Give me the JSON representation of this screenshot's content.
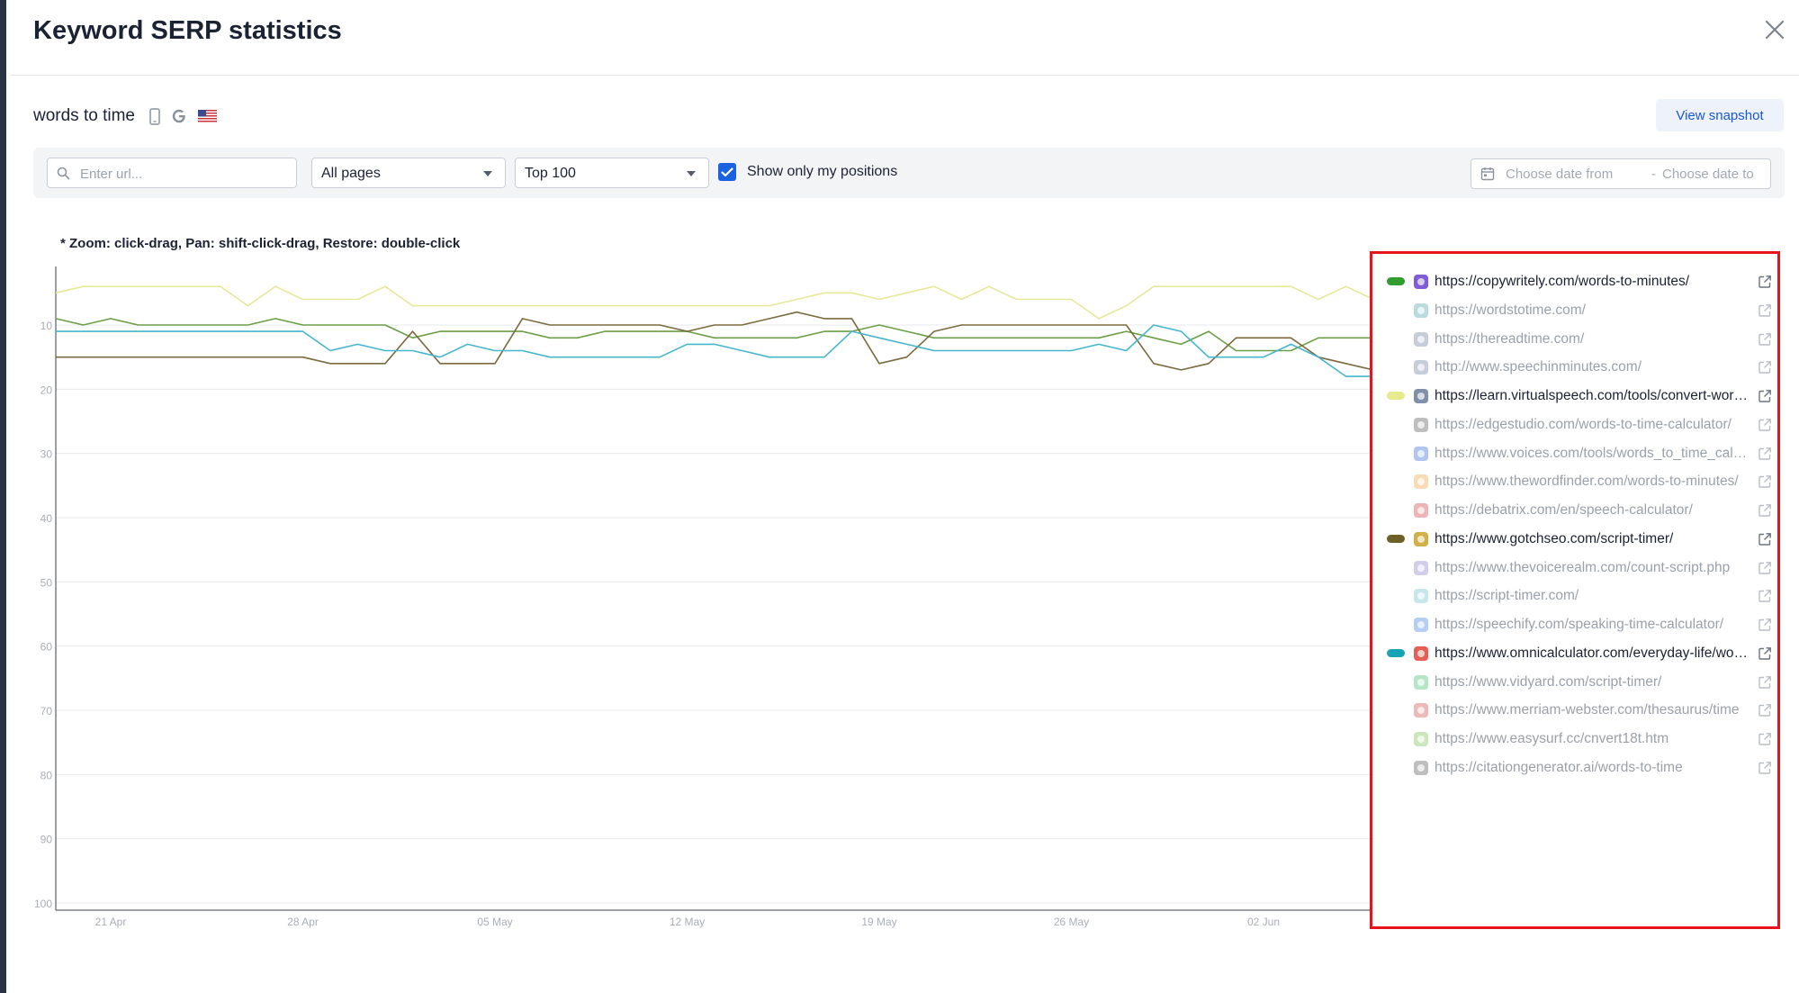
{
  "modal": {
    "title": "Keyword SERP statistics"
  },
  "keyword": {
    "text": "words to time",
    "device_icon": "mobile-phone-icon",
    "engine_icon": "google-icon",
    "region_icon": "us-flag-icon"
  },
  "actions": {
    "view_snapshot": "View snapshot"
  },
  "filters": {
    "url_placeholder": "Enter url...",
    "pages_select": "All pages",
    "top_select": "Top 100",
    "show_only_my_positions": "Show only my positions",
    "show_only_my_positions_checked": true,
    "date_from_placeholder": "Choose date from",
    "date_separator": "-",
    "date_to_placeholder": "Choose date to"
  },
  "chart_hint": "* Zoom: click-drag, Pan: shift-click-drag, Restore: double-click",
  "chart_data": {
    "type": "line",
    "y_reversed": true,
    "ylim": [
      1,
      100
    ],
    "y_ticks": [
      "10",
      "20",
      "30",
      "40",
      "50",
      "60",
      "70",
      "80",
      "90",
      "100"
    ],
    "x_ticks": [
      "21 Apr",
      "28 Apr",
      "05 May",
      "12 May",
      "19 May",
      "26 May",
      "02 Jun"
    ],
    "x": [
      "2024-04-19",
      "2024-04-20",
      "2024-04-21",
      "2024-04-22",
      "2024-04-23",
      "2024-04-24",
      "2024-04-25",
      "2024-04-26",
      "2024-04-27",
      "2024-04-28",
      "2024-04-29",
      "2024-04-30",
      "2024-05-01",
      "2024-05-02",
      "2024-05-03",
      "2024-05-04",
      "2024-05-05",
      "2024-05-06",
      "2024-05-07",
      "2024-05-08",
      "2024-05-09",
      "2024-05-10",
      "2024-05-11",
      "2024-05-12",
      "2024-05-13",
      "2024-05-14",
      "2024-05-15",
      "2024-05-16",
      "2024-05-17",
      "2024-05-18",
      "2024-05-19",
      "2024-05-20",
      "2024-05-21",
      "2024-05-22",
      "2024-05-23",
      "2024-05-24",
      "2024-05-25",
      "2024-05-26",
      "2024-05-27",
      "2024-05-28",
      "2024-05-29",
      "2024-05-30",
      "2024-05-31",
      "2024-06-01",
      "2024-06-02",
      "2024-06-03",
      "2024-06-04",
      "2024-06-05",
      "2024-06-06"
    ],
    "grid": true,
    "legend_position": "right",
    "series": [
      {
        "name": "https://copywritely.com/words-to-minutes/",
        "color": "#6a9f45",
        "values": [
          9,
          10,
          9,
          10,
          10,
          10,
          10,
          10,
          9,
          10,
          10,
          10,
          10,
          12,
          11,
          11,
          11,
          11,
          12,
          12,
          11,
          11,
          11,
          11,
          12,
          12,
          12,
          12,
          11,
          11,
          10,
          11,
          12,
          12,
          12,
          12,
          12,
          12,
          12,
          11,
          12,
          13,
          11,
          14,
          14,
          14,
          12,
          12,
          12
        ]
      },
      {
        "name": "https://learn.virtualspeech.com/tools/convert-words-to-time/",
        "color": "#e6e89a",
        "values": [
          5,
          4,
          4,
          4,
          4,
          4,
          4,
          7,
          4,
          6,
          6,
          6,
          4,
          7,
          7,
          7,
          7,
          7,
          7,
          7,
          7,
          7,
          7,
          7,
          7,
          7,
          7,
          6,
          5,
          5,
          6,
          5,
          4,
          6,
          4,
          6,
          6,
          6,
          9,
          7,
          4,
          4,
          4,
          4,
          4,
          4,
          6,
          4,
          6
        ]
      },
      {
        "name": "https://www.gotchseo.com/script-timer/",
        "color": "#7a6a3e",
        "values": [
          15,
          15,
          15,
          15,
          15,
          15,
          15,
          15,
          15,
          15,
          16,
          16,
          16,
          11,
          16,
          16,
          16,
          9,
          10,
          10,
          10,
          10,
          10,
          11,
          10,
          10,
          9,
          8,
          9,
          9,
          16,
          15,
          11,
          10,
          10,
          10,
          10,
          10,
          10,
          10,
          16,
          17,
          16,
          12,
          12,
          12,
          15,
          16,
          17
        ]
      },
      {
        "name": "https://www.omnicalculator.com/everyday-life/words-to-minutes",
        "color": "#45b6cc",
        "values": [
          11,
          11,
          11,
          11,
          11,
          11,
          11,
          11,
          11,
          11,
          14,
          13,
          14,
          14,
          15,
          13,
          14,
          14,
          15,
          15,
          15,
          15,
          15,
          13,
          13,
          14,
          15,
          15,
          15,
          11,
          12,
          13,
          14,
          14,
          14,
          14,
          14,
          14,
          13,
          14,
          10,
          11,
          15,
          15,
          15,
          13,
          15,
          18,
          18
        ]
      }
    ]
  },
  "legend": [
    {
      "url": "https://copywritely.com/words-to-minutes/",
      "active": true,
      "color": "#2f9e2f",
      "favicon": "copywritely-favicon-icon"
    },
    {
      "url": "https://wordstotime.com/",
      "active": false,
      "color": "",
      "favicon": "wordstotime-favicon-icon"
    },
    {
      "url": "https://thereadtime.com/",
      "active": false,
      "color": "",
      "favicon": "globe-icon"
    },
    {
      "url": "http://www.speechinminutes.com/",
      "active": false,
      "color": "",
      "favicon": "globe-icon"
    },
    {
      "url": "https://learn.virtualspeech.com/tools/convert-words-to-time/",
      "active": true,
      "color": "#e8eb8c",
      "favicon": "globe-icon"
    },
    {
      "url": "https://edgestudio.com/words-to-time-calculator/",
      "active": false,
      "color": "",
      "favicon": "edgestudio-favicon-icon"
    },
    {
      "url": "https://www.voices.com/tools/words_to_time_calculator",
      "active": false,
      "color": "",
      "favicon": "voices-favicon-icon"
    },
    {
      "url": "https://www.thewordfinder.com/words-to-minutes/",
      "active": false,
      "color": "",
      "favicon": "thewordfinder-favicon-icon"
    },
    {
      "url": "https://debatrix.com/en/speech-calculator/",
      "active": false,
      "color": "",
      "favicon": "debatrix-favicon-icon"
    },
    {
      "url": "https://www.gotchseo.com/script-timer/",
      "active": true,
      "color": "#6e6128",
      "favicon": "gotchseo-favicon-icon"
    },
    {
      "url": "https://www.thevoicerealm.com/count-script.php",
      "active": false,
      "color": "",
      "favicon": "thevoicerealm-favicon-icon"
    },
    {
      "url": "https://script-timer.com/",
      "active": false,
      "color": "",
      "favicon": "script-timer-favicon-icon"
    },
    {
      "url": "https://speechify.com/speaking-time-calculator/",
      "active": false,
      "color": "",
      "favicon": "speechify-favicon-icon"
    },
    {
      "url": "https://www.omnicalculator.com/everyday-life/words-to-minutes",
      "active": true,
      "color": "#1aa3b5",
      "favicon": "omnicalculator-favicon-icon"
    },
    {
      "url": "https://www.vidyard.com/script-timer/",
      "active": false,
      "color": "",
      "favicon": "vidyard-favicon-icon"
    },
    {
      "url": "https://www.merriam-webster.com/thesaurus/time",
      "active": false,
      "color": "",
      "favicon": "merriam-webster-favicon-icon"
    },
    {
      "url": "https://www.easysurf.cc/cnvert18t.htm",
      "active": false,
      "color": "",
      "favicon": "easysurf-favicon-icon"
    },
    {
      "url": "https://citationgenerator.ai/words-to-time",
      "active": false,
      "color": "",
      "favicon": "citationgenerator-favicon-icon"
    }
  ]
}
